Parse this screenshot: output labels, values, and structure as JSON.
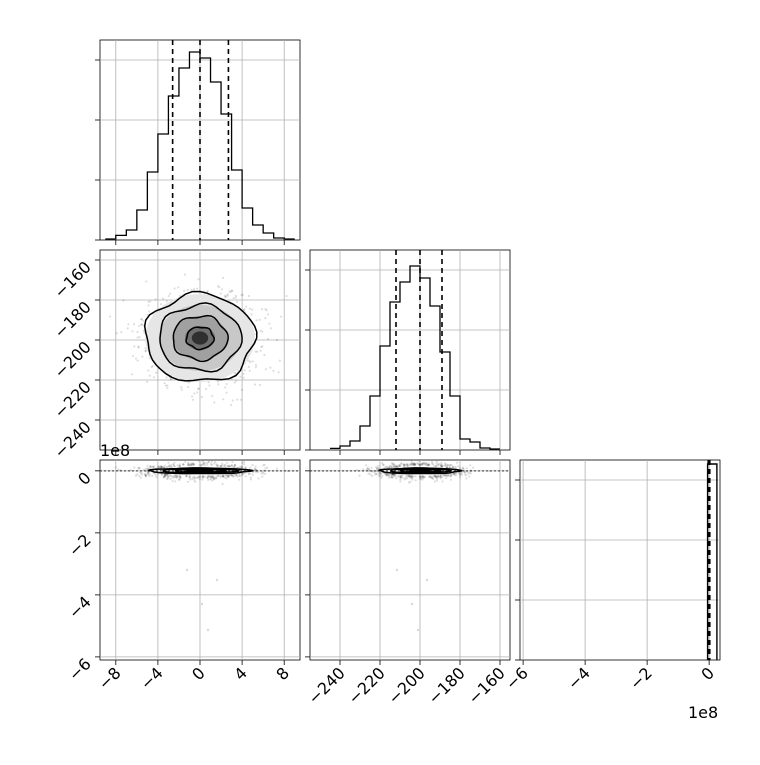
{
  "chart_data": {
    "type": "corner",
    "title": "",
    "parameters": [
      {
        "xlim": [
          -9.5,
          9.5
        ],
        "ticks": [
          -8,
          -4,
          0,
          4,
          8
        ],
        "tick_labels": [
          "−8",
          "−4",
          "0",
          "4",
          "8"
        ],
        "exponent": ""
      },
      {
        "xlim": [
          -255,
          -155
        ],
        "ticks": [
          -240,
          -220,
          -200,
          -180,
          -160
        ],
        "tick_labels": [
          "−240",
          "−220",
          "−200",
          "−180",
          "−160"
        ],
        "exponent": ""
      },
      {
        "xlim": [
          -6.1,
          0.35
        ],
        "ticks": [
          -6,
          -4,
          -2,
          0
        ],
        "tick_labels": [
          "−6",
          "−4",
          "−2",
          "0"
        ],
        "exponent": "1e8"
      }
    ],
    "quantiles": [
      0.16,
      0.5,
      0.84
    ],
    "histograms": [
      {
        "param": 0,
        "quantile_values": [
          -2.6,
          0.0,
          2.7
        ],
        "ylim": [
          0,
          1.0
        ],
        "edges": [
          -9.0,
          -8.0,
          -7.0,
          -6.0,
          -5.0,
          -4.0,
          -3.0,
          -2.0,
          -1.0,
          0.0,
          1.0,
          2.0,
          3.0,
          4.0,
          5.0,
          6.0,
          7.0,
          8.0,
          9.0
        ],
        "counts": [
          0.005,
          0.023,
          0.05,
          0.15,
          0.34,
          0.53,
          0.72,
          0.86,
          0.94,
          0.91,
          0.79,
          0.63,
          0.35,
          0.16,
          0.075,
          0.035,
          0.01,
          0.005
        ]
      },
      {
        "param": 1,
        "quantile_values": [
          -212,
          -200,
          -189
        ],
        "ylim": [
          0,
          1.0
        ],
        "edges": [
          -245,
          -240,
          -235,
          -230,
          -225,
          -220,
          -215,
          -210,
          -205,
          -200,
          -195,
          -190,
          -185,
          -180,
          -175,
          -170,
          -165,
          -160
        ],
        "counts": [
          0.008,
          0.02,
          0.045,
          0.12,
          0.27,
          0.52,
          0.74,
          0.84,
          0.92,
          0.86,
          0.72,
          0.49,
          0.27,
          0.055,
          0.04,
          0.01,
          0.005
        ]
      },
      {
        "param": 2,
        "quantile_values": [
          -0.03,
          0.0,
          0.02
        ],
        "ylim": [
          0,
          1.0
        ],
        "edges": [
          -0.15,
          0.0,
          0.15
        ],
        "counts": [
          0.0,
          0.0
        ],
        "spike": {
          "x0": -0.05,
          "x1": 0.25,
          "height": 0.98
        }
      }
    ],
    "scatter_panels": [
      {
        "x_param": 0,
        "y_param": 1,
        "center": [
          0.0,
          -199.0
        ],
        "sigma": [
          2.6,
          11.0
        ],
        "contour_sigmas": [
          0.5,
          1.0,
          1.5,
          2.0
        ]
      },
      {
        "x_param": 0,
        "y_param": 2,
        "center": [
          0.0,
          0.0
        ],
        "sigma": [
          2.4,
          0.045
        ],
        "contour_sigmas": [
          0.5,
          1.0,
          1.5,
          2.0
        ]
      },
      {
        "x_param": 1,
        "y_param": 2,
        "center": [
          -200.0,
          0.0
        ],
        "sigma": [
          10.0,
          0.045
        ],
        "contour_sigmas": [
          0.5,
          1.0,
          1.5,
          2.0
        ]
      }
    ],
    "grid": true,
    "legend": "none"
  }
}
